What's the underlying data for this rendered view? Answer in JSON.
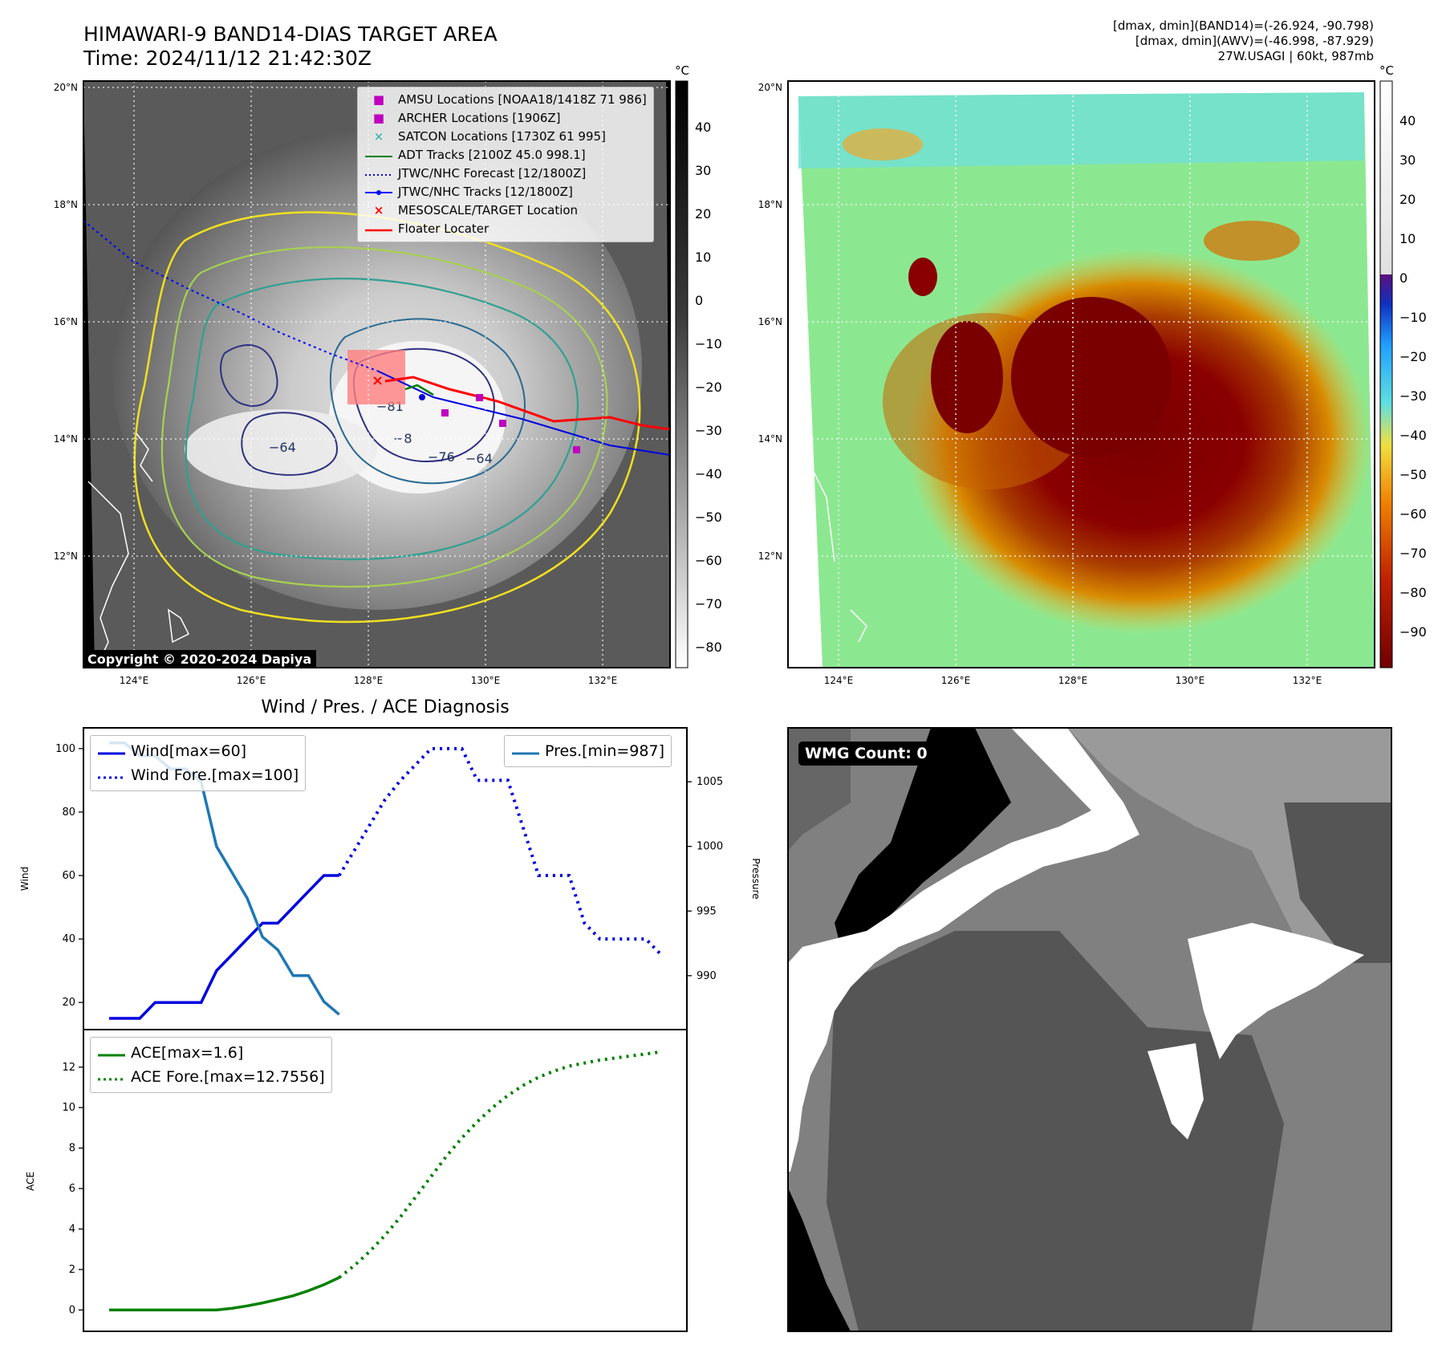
{
  "header": {
    "title_line1": "HIMAWARI-9 BAND14-DIAS TARGET AREA",
    "title_line2": "Time: 2024/11/12 21:42:30Z",
    "info_line1": "[dmax, dmin](BAND14)=(-26.924, -90.798)",
    "info_line2": "[dmax, dmin](AWV)=(-46.998, -87.929)",
    "info_line3": "27W.USAGI | 60kt, 987mb"
  },
  "map_axes": {
    "lat_ticks": [
      "20°N",
      "18°N",
      "16°N",
      "14°N",
      "12°N"
    ],
    "lon_ticks": [
      "124°E",
      "126°E",
      "128°E",
      "130°E",
      "132°E"
    ]
  },
  "ir_map": {
    "colorbar_unit": "°C",
    "colorbar_ticks": [
      "40",
      "30",
      "20",
      "10",
      "0",
      "−10",
      "−20",
      "−30",
      "−40",
      "−50",
      "−60",
      "−70",
      "−80"
    ],
    "contour_labels": [
      "−64",
      "−76",
      "−64",
      "−81",
      "−8"
    ],
    "copyright": "Copyright © 2020-2024 Dapiya",
    "legend": [
      {
        "label": "AMSU Locations [NOAA18/1418Z 71 986]",
        "symbol": "square",
        "color": "#c000c0"
      },
      {
        "label": "ARCHER Locations [1906Z]",
        "symbol": "square",
        "color": "#c000c0"
      },
      {
        "label": "SATCON Locations [1730Z 61 995]",
        "symbol": "x",
        "color": "#20b0a0"
      },
      {
        "label": "ADT Tracks [2100Z 45.0 998.1]",
        "symbol": "line",
        "color": "#008000"
      },
      {
        "label": "JTWC/NHC Forecast [12/1800Z]",
        "symbol": "dotted",
        "color": "#0000ff"
      },
      {
        "label": "JTWC/NHC Tracks [12/1800Z]",
        "symbol": "line-dot",
        "color": "#0000ff"
      },
      {
        "label": "MESOSCALE/TARGET Location",
        "symbol": "x",
        "color": "#ff0000"
      },
      {
        "label": "Floater Locater",
        "symbol": "line",
        "color": "#ff0000"
      }
    ]
  },
  "awv_map": {
    "colorbar_unit": "°C",
    "colorbar_ticks": [
      "40",
      "30",
      "20",
      "10",
      "0",
      "−10",
      "−20",
      "−30",
      "−40",
      "−50",
      "−60",
      "−70",
      "−80",
      "−90"
    ]
  },
  "wmg": {
    "label": "WMG Count: 0"
  },
  "chart_data": [
    {
      "type": "line",
      "title": "Wind / Pres. / ACE Diagnosis",
      "ylabel": "Wind",
      "ylabel_right": "Pressure",
      "ylim": [
        15,
        103
      ],
      "ylim_right": [
        986.7,
        1008.3
      ],
      "xlim": [
        0,
        36
      ],
      "y_ticks": [
        "100",
        "80",
        "60",
        "40",
        "20"
      ],
      "y_ticks_right": [
        "1005",
        "1000",
        "995",
        "990"
      ],
      "series": [
        {
          "name": "Wind[max=60]",
          "color": "#0000e0",
          "style": "solid",
          "axis": "left",
          "x": [
            0,
            1,
            2,
            3,
            4,
            5,
            6,
            7,
            8,
            9,
            10,
            11,
            12,
            13,
            14,
            15
          ],
          "values": [
            15,
            15,
            15,
            20,
            20,
            20,
            20,
            30,
            35,
            40,
            45,
            45,
            50,
            55,
            60,
            60
          ]
        },
        {
          "name": "Wind Fore.[max=100]",
          "color": "#0000e0",
          "style": "dotted",
          "axis": "left",
          "x": [
            15,
            16,
            17,
            18,
            19,
            20,
            21,
            22,
            23,
            24,
            25,
            26,
            27,
            28,
            29,
            30,
            31,
            32,
            33,
            34,
            35,
            36
          ],
          "values": [
            60,
            68,
            76,
            84,
            90,
            95,
            100,
            100,
            100,
            90,
            90,
            90,
            75,
            60,
            60,
            60,
            45,
            40,
            40,
            40,
            40,
            35
          ]
        },
        {
          "name": "Pres.[min=987]",
          "color": "#1f77b4",
          "style": "solid",
          "axis": "right",
          "x": [
            0,
            1,
            2,
            3,
            4,
            5,
            6,
            7,
            8,
            9,
            10,
            11,
            12,
            13,
            14,
            15
          ],
          "values": [
            1008,
            1008,
            1007,
            1007,
            1006,
            1006,
            1005,
            1000,
            998,
            996,
            993,
            992,
            990,
            990,
            988,
            987
          ]
        }
      ],
      "legend_left": [
        "Wind[max=60]",
        "Wind Fore.[max=100]"
      ],
      "legend_right": [
        "Pres.[min=987]"
      ]
    },
    {
      "type": "line",
      "ylabel": "ACE",
      "ylim": [
        -0.5,
        13.3
      ],
      "xlim": [
        0,
        36
      ],
      "y_ticks": [
        "12",
        "10",
        "8",
        "6",
        "4",
        "2",
        "0"
      ],
      "series": [
        {
          "name": "ACE[max=1.6]",
          "color": "#008000",
          "style": "solid",
          "x": [
            0,
            2,
            4,
            6,
            7,
            8,
            9,
            10,
            11,
            12,
            13,
            14,
            15
          ],
          "values": [
            0,
            0,
            0,
            0,
            0,
            0.08,
            0.2,
            0.35,
            0.52,
            0.7,
            0.95,
            1.25,
            1.6
          ]
        },
        {
          "name": "ACE Fore.[max=12.7556]",
          "color": "#008000",
          "style": "dotted",
          "x": [
            15,
            16,
            17,
            18,
            19,
            20,
            21,
            22,
            23,
            24,
            25,
            26,
            27,
            28,
            29,
            30,
            31,
            32,
            33,
            34,
            35,
            36
          ],
          "values": [
            1.6,
            2.2,
            2.9,
            3.7,
            4.6,
            5.6,
            6.6,
            7.6,
            8.5,
            9.3,
            10.0,
            10.6,
            11.1,
            11.5,
            11.8,
            12.05,
            12.2,
            12.35,
            12.45,
            12.55,
            12.65,
            12.76
          ]
        }
      ]
    }
  ]
}
